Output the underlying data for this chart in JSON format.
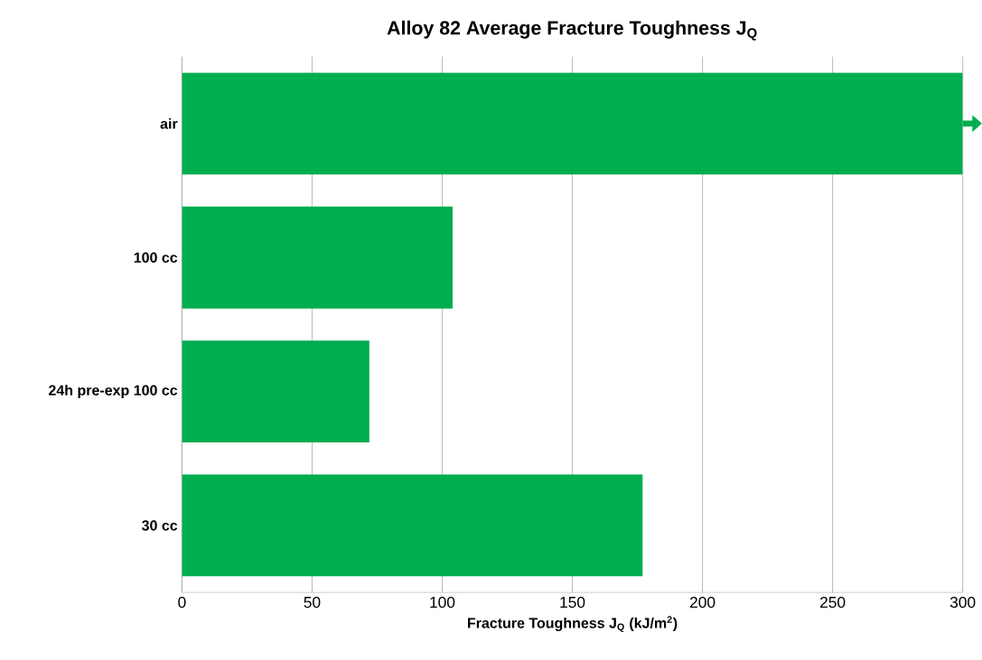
{
  "chart_data": {
    "type": "bar",
    "orientation": "horizontal",
    "title": "Alloy 82 Average Fracture Toughness J$_{Q}$",
    "xlabel": "Fracture Toughness J$_{Q}$ (kJ/m$^{2}$)",
    "categories": [
      "air",
      "100 cc",
      "24h pre-exp 100 cc",
      "30 cc"
    ],
    "values": [
      300,
      104,
      72,
      177
    ],
    "color": "#00ad4f",
    "xlim": [
      0,
      300
    ],
    "xticks": [
      0,
      50,
      100,
      150,
      200,
      250,
      300
    ],
    "grid": "x"
  }
}
